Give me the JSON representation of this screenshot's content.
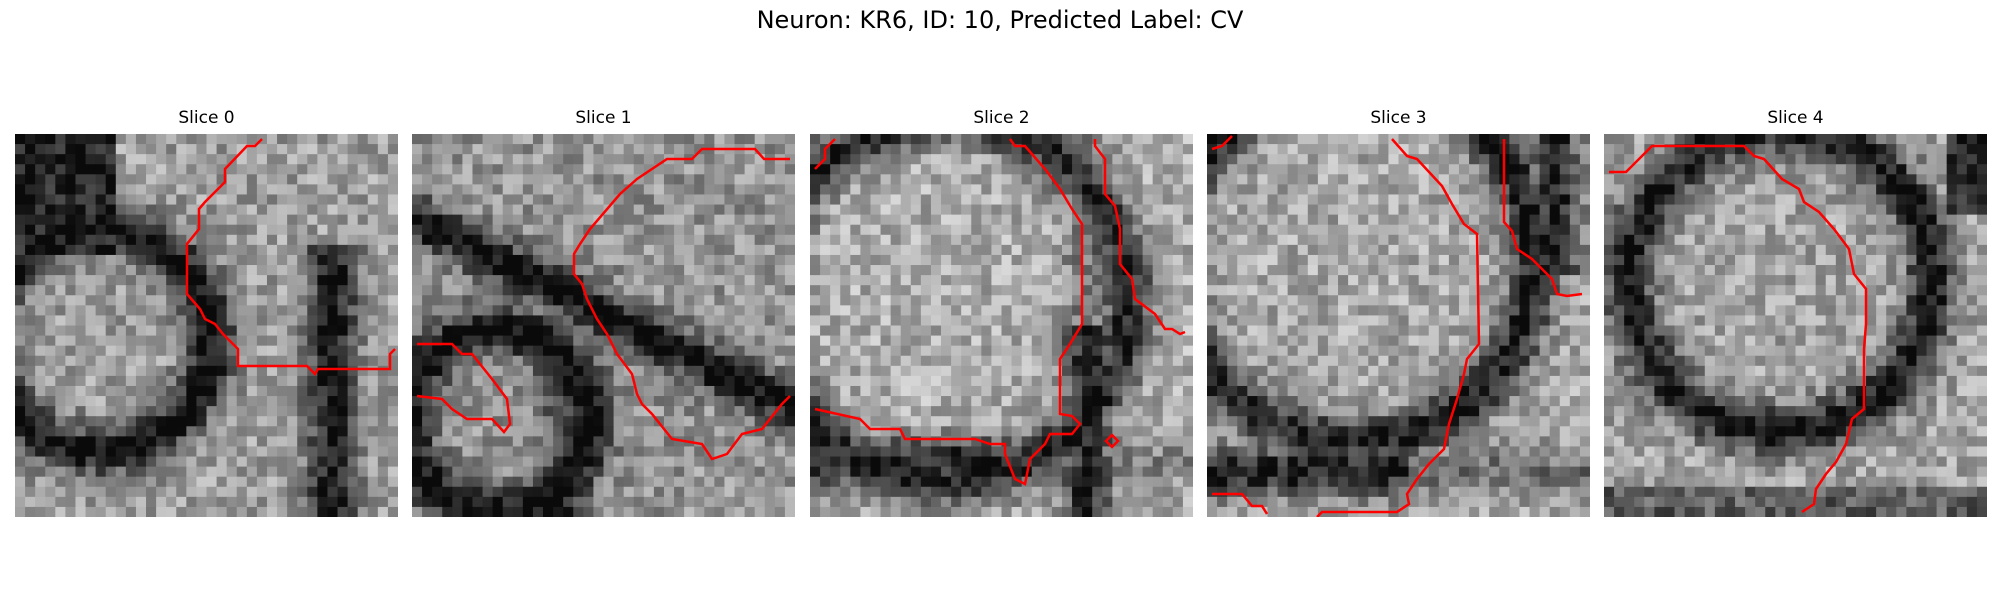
{
  "figure": {
    "title": "Neuron: KR6, ID: 10, Predicted Label: CV"
  },
  "contour_color": "#ff0000",
  "panels": [
    {
      "title": "Slice 0",
      "seed": 11,
      "bright": 0.62,
      "ridge": "arch"
    },
    {
      "title": "Slice 1",
      "seed": 23,
      "bright": 0.58,
      "ridge": "diag"
    },
    {
      "title": "Slice 2",
      "seed": 37,
      "bright": 0.68,
      "ridge": "right"
    },
    {
      "title": "Slice 3",
      "seed": 49,
      "bright": 0.66,
      "ridge": "bottom"
    },
    {
      "title": "Slice 4",
      "seed": 61,
      "bright": 0.64,
      "ridge": "ring"
    }
  ]
}
